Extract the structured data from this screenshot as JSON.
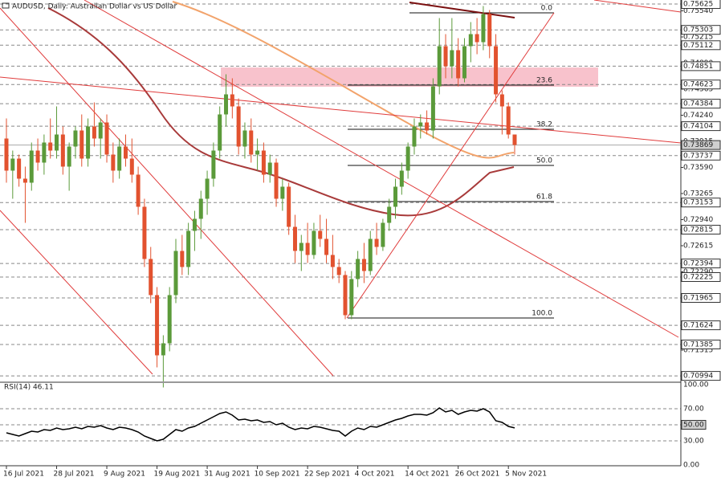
{
  "chart_data": {
    "type": "candlestick",
    "title": "AUDUSD, Daily: Australian Dollar vs US Dollar",
    "up_color": "#5b9a3a",
    "down_color": "#e2522f",
    "ylim": [
      0.7092,
      0.7566
    ],
    "yticks": [
      {
        "value": 0.7554,
        "label": "0.75540"
      },
      {
        "value": 0.75215,
        "label": "0.75215"
      },
      {
        "value": 0.7489,
        "label": "0.74890"
      },
      {
        "value": 0.74565,
        "label": "0.74565"
      },
      {
        "value": 0.7424,
        "label": "0.74240"
      },
      {
        "value": 0.73915,
        "label": "0.73915"
      },
      {
        "value": 0.7359,
        "label": "0.73590"
      },
      {
        "value": 0.73265,
        "label": "0.73265"
      },
      {
        "value": 0.7294,
        "label": "0.72940"
      },
      {
        "value": 0.72615,
        "label": "0.72615"
      },
      {
        "value": 0.7229,
        "label": "0.72290"
      },
      {
        "value": 0.71315,
        "label": "0.71315"
      }
    ],
    "levels": [
      0.75625,
      0.75303,
      0.75112,
      0.74851,
      0.74623,
      0.74384,
      0.74104,
      0.73737,
      0.73153,
      0.72815,
      0.72394,
      0.72225,
      0.71965,
      0.71624,
      0.71385,
      0.70994
    ],
    "current_price": 0.73869,
    "zone": [
      0.74595,
      0.74835
    ],
    "fibonacci": {
      "labels": [
        "0.0",
        "23.6",
        "38.2",
        "50.0",
        "61.8",
        "100.0"
      ],
      "prices": [
        0.75515,
        0.74615,
        0.74065,
        0.73615,
        0.73165,
        0.71715
      ]
    },
    "categories": [
      "16 Jul 2021",
      null,
      null,
      null,
      null,
      null,
      null,
      null,
      "28 Jul 2021",
      null,
      null,
      null,
      null,
      null,
      null,
      null,
      "9 Aug 2021",
      null,
      null,
      null,
      null,
      null,
      null,
      null,
      "19 Aug 2021",
      null,
      null,
      null,
      null,
      null,
      null,
      null,
      "31 Aug 2021",
      null,
      null,
      null,
      null,
      null,
      null,
      null,
      "10 Sep 2021",
      null,
      null,
      null,
      null,
      null,
      null,
      null,
      "22 Sep 2021",
      null,
      null,
      null,
      null,
      null,
      null,
      null,
      "4 Oct 2021",
      null,
      null,
      null,
      null,
      null,
      null,
      null,
      "14 Oct 2021",
      null,
      null,
      null,
      null,
      null,
      null,
      null,
      "26 Oct 2021",
      null,
      null,
      null,
      null,
      null,
      null,
      null,
      "5 Nov 2021",
      null
    ],
    "ohlc": [
      [
        0.7395,
        0.742,
        0.734,
        0.7355
      ],
      [
        0.7355,
        0.738,
        0.732,
        0.737
      ],
      [
        0.737,
        0.7375,
        0.7335,
        0.7345
      ],
      [
        0.7345,
        0.736,
        0.729,
        0.734
      ],
      [
        0.734,
        0.739,
        0.733,
        0.738
      ],
      [
        0.738,
        0.7395,
        0.7355,
        0.7365
      ],
      [
        0.7365,
        0.74,
        0.735,
        0.739
      ],
      [
        0.739,
        0.742,
        0.737,
        0.738
      ],
      [
        0.738,
        0.7435,
        0.737,
        0.74
      ],
      [
        0.74,
        0.741,
        0.735,
        0.736
      ],
      [
        0.736,
        0.739,
        0.733,
        0.7385
      ],
      [
        0.7385,
        0.741,
        0.737,
        0.7405
      ],
      [
        0.7405,
        0.7425,
        0.736,
        0.737
      ],
      [
        0.737,
        0.742,
        0.736,
        0.741
      ],
      [
        0.741,
        0.744,
        0.7385,
        0.7395
      ],
      [
        0.7395,
        0.742,
        0.737,
        0.7415
      ],
      [
        0.7415,
        0.7425,
        0.7365,
        0.7375
      ],
      [
        0.7375,
        0.739,
        0.734,
        0.7355
      ],
      [
        0.7355,
        0.7395,
        0.7345,
        0.7385
      ],
      [
        0.7385,
        0.74,
        0.736,
        0.737
      ],
      [
        0.737,
        0.7395,
        0.734,
        0.735
      ],
      [
        0.735,
        0.736,
        0.73,
        0.731
      ],
      [
        0.731,
        0.732,
        0.7235,
        0.7245
      ],
      [
        0.7245,
        0.726,
        0.719,
        0.72
      ],
      [
        0.72,
        0.721,
        0.711,
        0.7125
      ],
      [
        0.7125,
        0.715,
        0.7085,
        0.714
      ],
      [
        0.714,
        0.721,
        0.713,
        0.72
      ],
      [
        0.72,
        0.727,
        0.719,
        0.7255
      ],
      [
        0.7255,
        0.7275,
        0.7225,
        0.7235
      ],
      [
        0.7235,
        0.729,
        0.7225,
        0.728
      ],
      [
        0.728,
        0.7305,
        0.7255,
        0.7295
      ],
      [
        0.7295,
        0.733,
        0.727,
        0.732
      ],
      [
        0.732,
        0.7355,
        0.73,
        0.7345
      ],
      [
        0.7345,
        0.739,
        0.7335,
        0.738
      ],
      [
        0.738,
        0.7435,
        0.737,
        0.7425
      ],
      [
        0.7425,
        0.7475,
        0.741,
        0.745
      ],
      [
        0.745,
        0.747,
        0.742,
        0.7435
      ],
      [
        0.7435,
        0.7445,
        0.7375,
        0.7385
      ],
      [
        0.7385,
        0.7415,
        0.737,
        0.7405
      ],
      [
        0.7405,
        0.742,
        0.7365,
        0.7375
      ],
      [
        0.7375,
        0.7395,
        0.7355,
        0.738
      ],
      [
        0.738,
        0.739,
        0.734,
        0.735
      ],
      [
        0.735,
        0.7375,
        0.734,
        0.7365
      ],
      [
        0.7365,
        0.737,
        0.731,
        0.732
      ],
      [
        0.732,
        0.7345,
        0.7305,
        0.7335
      ],
      [
        0.7335,
        0.734,
        0.7275,
        0.7285
      ],
      [
        0.7285,
        0.73,
        0.724,
        0.7255
      ],
      [
        0.7255,
        0.7275,
        0.723,
        0.7265
      ],
      [
        0.7265,
        0.729,
        0.724,
        0.725
      ],
      [
        0.725,
        0.729,
        0.7245,
        0.728
      ],
      [
        0.728,
        0.73,
        0.726,
        0.727
      ],
      [
        0.727,
        0.7295,
        0.724,
        0.725
      ],
      [
        0.725,
        0.7275,
        0.722,
        0.7235
      ],
      [
        0.7235,
        0.7245,
        0.7215,
        0.7225
      ],
      [
        0.7225,
        0.723,
        0.717,
        0.7175
      ],
      [
        0.7175,
        0.723,
        0.717,
        0.722
      ],
      [
        0.722,
        0.7255,
        0.721,
        0.7245
      ],
      [
        0.7245,
        0.7265,
        0.7215,
        0.723
      ],
      [
        0.723,
        0.728,
        0.7225,
        0.727
      ],
      [
        0.727,
        0.729,
        0.725,
        0.726
      ],
      [
        0.726,
        0.7295,
        0.7255,
        0.729
      ],
      [
        0.729,
        0.732,
        0.728,
        0.731
      ],
      [
        0.731,
        0.7345,
        0.7295,
        0.7335
      ],
      [
        0.7335,
        0.7365,
        0.7325,
        0.7355
      ],
      [
        0.7355,
        0.739,
        0.7345,
        0.7385
      ],
      [
        0.7385,
        0.742,
        0.7375,
        0.741
      ],
      [
        0.741,
        0.7425,
        0.7395,
        0.7415
      ],
      [
        0.7415,
        0.743,
        0.74,
        0.7405
      ],
      [
        0.7405,
        0.747,
        0.7395,
        0.746
      ],
      [
        0.746,
        0.7545,
        0.745,
        0.751
      ],
      [
        0.751,
        0.7525,
        0.747,
        0.7485
      ],
      [
        0.7485,
        0.7545,
        0.747,
        0.7505
      ],
      [
        0.7505,
        0.752,
        0.746,
        0.747
      ],
      [
        0.747,
        0.752,
        0.7465,
        0.751
      ],
      [
        0.751,
        0.754,
        0.749,
        0.7525
      ],
      [
        0.7525,
        0.7545,
        0.75,
        0.7515
      ],
      [
        0.7515,
        0.756,
        0.7505,
        0.755
      ],
      [
        0.755,
        0.7555,
        0.7495,
        0.751
      ],
      [
        0.751,
        0.7525,
        0.744,
        0.745
      ],
      [
        0.745,
        0.7455,
        0.74,
        0.7435
      ],
      [
        0.7435,
        0.744,
        0.7395,
        0.74
      ],
      [
        0.74,
        0.74,
        0.7375,
        0.7387
      ]
    ],
    "rsi": {
      "title": "RSI(14) 46.11",
      "ylim": [
        0,
        101
      ],
      "highlight": {
        "value": 50,
        "label": "50.00"
      },
      "yticks": [
        {
          "value": 100,
          "label": "100.00"
        },
        {
          "value": 70,
          "label": "70.00"
        },
        {
          "value": 30,
          "label": "30.00"
        },
        {
          "value": 0,
          "label": "0.00"
        }
      ],
      "values": [
        40,
        38,
        36,
        39,
        42,
        41,
        44,
        43,
        46,
        44,
        45,
        47,
        45,
        48,
        47,
        49,
        46,
        44,
        47,
        46,
        44,
        41,
        36,
        33,
        30,
        32,
        38,
        44,
        42,
        46,
        48,
        52,
        56,
        60,
        64,
        66,
        62,
        56,
        57,
        55,
        56,
        53,
        54,
        50,
        52,
        47,
        44,
        46,
        45,
        48,
        47,
        45,
        43,
        42,
        36,
        42,
        46,
        44,
        48,
        47,
        50,
        53,
        56,
        58,
        61,
        63,
        63,
        62,
        65,
        71,
        66,
        68,
        63,
        66,
        68,
        67,
        70,
        66,
        55,
        53,
        48,
        46.11
      ]
    }
  }
}
